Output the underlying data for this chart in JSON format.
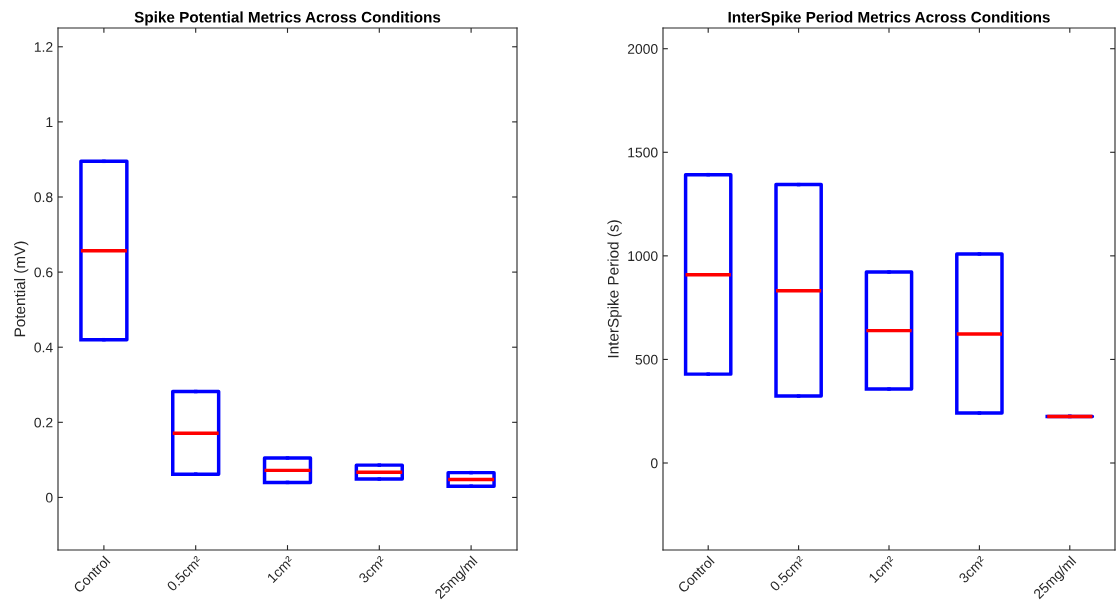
{
  "chart_data": [
    {
      "type": "box",
      "title": "Spike Potential Metrics Across Conditions",
      "ylabel": "Potential (mV)",
      "categories": [
        "Control",
        "0.5cm²",
        "1cm²",
        "3cm²",
        "25mg/ml"
      ],
      "ylim": [
        -0.14,
        1.25
      ],
      "yticks": [
        0,
        0.2,
        0.4,
        0.6,
        0.8,
        1,
        1.2
      ],
      "grid": false,
      "series": [
        {
          "color": "#0000ff",
          "boxes": [
            {
              "low": 0.42,
              "q1": 0.42,
              "median": 0.657,
              "q3": 0.895,
              "high": 0.895
            },
            {
              "low": 0.062,
              "q1": 0.062,
              "median": 0.171,
              "q3": 0.282,
              "high": 0.282
            },
            {
              "low": 0.04,
              "q1": 0.04,
              "median": 0.072,
              "q3": 0.105,
              "high": 0.105
            },
            {
              "low": 0.049,
              "q1": 0.049,
              "median": 0.067,
              "q3": 0.086,
              "high": 0.086
            },
            {
              "low": 0.03,
              "q1": 0.03,
              "median": 0.048,
              "q3": 0.066,
              "high": 0.066
            }
          ]
        }
      ]
    },
    {
      "type": "box",
      "title": "InterSpike Period Metrics Across Conditions",
      "ylabel": "InterSpike Period (s)",
      "categories": [
        "Control",
        "0.5cm²",
        "1cm²",
        "3cm²",
        "25mg/ml"
      ],
      "ylim": [
        -420,
        2100
      ],
      "yticks": [
        0,
        500,
        1000,
        1500,
        2000
      ],
      "grid": false,
      "series": [
        {
          "color": "#0000ff",
          "boxes": [
            {
              "low": 429,
              "q1": 429,
              "median": 909,
              "q3": 1392,
              "high": 1392
            },
            {
              "low": 323,
              "q1": 323,
              "median": 832,
              "q3": 1344,
              "high": 1344
            },
            {
              "low": 357,
              "q1": 357,
              "median": 639,
              "q3": 922,
              "high": 922
            },
            {
              "low": 241,
              "q1": 241,
              "median": 623,
              "q3": 1009,
              "high": 1009
            },
            {
              "low": 225,
              "q1": 225,
              "median": 225,
              "q3": 225,
              "high": 225
            }
          ]
        }
      ]
    }
  ]
}
